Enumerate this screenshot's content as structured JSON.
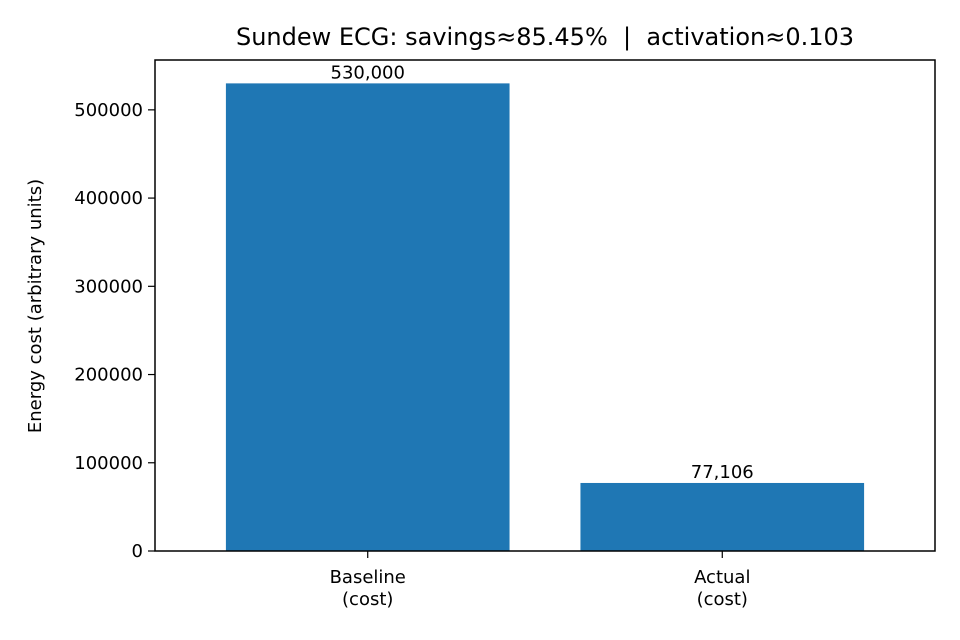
{
  "chart_data": {
    "type": "bar",
    "title": "Sundew ECG: savings≈85.45%  |  activation≈0.103",
    "xlabel": "",
    "ylabel": "Energy cost (arbitrary units)",
    "categories": [
      [
        "Baseline",
        "(cost)"
      ],
      [
        "Actual",
        "(cost)"
      ]
    ],
    "values": [
      530000,
      77106
    ],
    "data_labels": [
      "530,000",
      "77,106"
    ],
    "ylim": [
      0,
      556500
    ],
    "yticks": [
      0,
      100000,
      200000,
      300000,
      400000,
      500000
    ],
    "ytick_labels": [
      "0",
      "100000",
      "200000",
      "300000",
      "400000",
      "500000"
    ],
    "bar_color": "#1f77b4",
    "grid": false,
    "legend": "none"
  }
}
